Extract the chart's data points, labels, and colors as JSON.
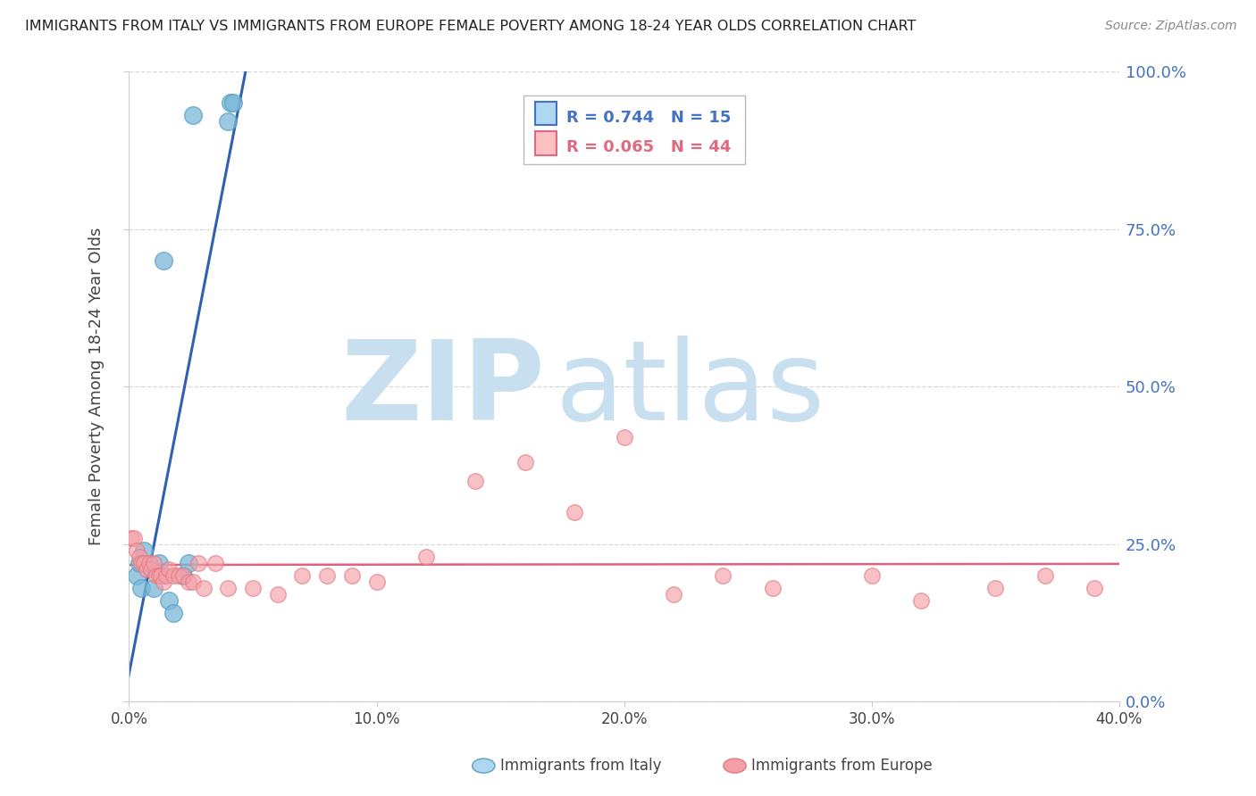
{
  "title": "IMMIGRANTS FROM ITALY VS IMMIGRANTS FROM EUROPE FEMALE POVERTY AMONG 18-24 YEAR OLDS CORRELATION CHART",
  "source": "Source: ZipAtlas.com",
  "ylabel": "Female Poverty Among 18-24 Year Olds",
  "xlim": [
    0.0,
    0.4
  ],
  "ylim": [
    0.0,
    1.0
  ],
  "xticks": [
    0.0,
    0.1,
    0.2,
    0.3,
    0.4
  ],
  "xtick_labels": [
    "0.0%",
    "10.0%",
    "20.0%",
    "30.0%",
    "40.0%"
  ],
  "yticks": [
    0.0,
    0.25,
    0.5,
    0.75,
    1.0
  ],
  "ytick_labels": [
    "0.0%",
    "25.0%",
    "50.0%",
    "75.0%",
    "100.0%"
  ],
  "italy_color": "#7ab8d9",
  "italy_edge_color": "#5a9fc0",
  "europe_color": "#f4a0a8",
  "europe_edge_color": "#e07880",
  "italy_line_color": "#3060b0",
  "europe_line_color": "#e06080",
  "italy_R": 0.744,
  "italy_N": 15,
  "europe_R": 0.065,
  "europe_N": 44,
  "italy_x": [
    0.003,
    0.004,
    0.005,
    0.006,
    0.01,
    0.012,
    0.014,
    0.016,
    0.018,
    0.022,
    0.024,
    0.026,
    0.04,
    0.041,
    0.042
  ],
  "italy_y": [
    0.2,
    0.22,
    0.18,
    0.24,
    0.18,
    0.22,
    0.7,
    0.16,
    0.14,
    0.2,
    0.22,
    0.93,
    0.92,
    0.95,
    0.95
  ],
  "europe_x": [
    0.001,
    0.002,
    0.003,
    0.004,
    0.005,
    0.006,
    0.007,
    0.008,
    0.009,
    0.01,
    0.011,
    0.012,
    0.013,
    0.014,
    0.015,
    0.016,
    0.018,
    0.02,
    0.022,
    0.024,
    0.026,
    0.028,
    0.03,
    0.035,
    0.04,
    0.05,
    0.06,
    0.07,
    0.08,
    0.09,
    0.1,
    0.12,
    0.14,
    0.16,
    0.18,
    0.2,
    0.22,
    0.24,
    0.26,
    0.3,
    0.32,
    0.35,
    0.37,
    0.39
  ],
  "europe_y": [
    0.26,
    0.26,
    0.24,
    0.23,
    0.22,
    0.22,
    0.21,
    0.22,
    0.21,
    0.22,
    0.2,
    0.2,
    0.2,
    0.19,
    0.2,
    0.21,
    0.2,
    0.2,
    0.2,
    0.19,
    0.19,
    0.22,
    0.18,
    0.22,
    0.18,
    0.18,
    0.17,
    0.2,
    0.2,
    0.2,
    0.19,
    0.23,
    0.35,
    0.38,
    0.3,
    0.42,
    0.17,
    0.2,
    0.18,
    0.2,
    0.16,
    0.18,
    0.2,
    0.18
  ],
  "watermark_zip": "ZIP",
  "watermark_atlas": "atlas",
  "watermark_color": "#c8dff0",
  "background_color": "#ffffff",
  "grid_color": "#d8d8d8",
  "legend_italy_text": "R = 0.744   N = 15",
  "legend_europe_text": "R = 0.065   N = 44",
  "legend_italy_color": "#4472c4",
  "legend_europe_color": "#e06880",
  "bottom_legend_italy": "Immigrants from Italy",
  "bottom_legend_europe": "Immigrants from Europe"
}
